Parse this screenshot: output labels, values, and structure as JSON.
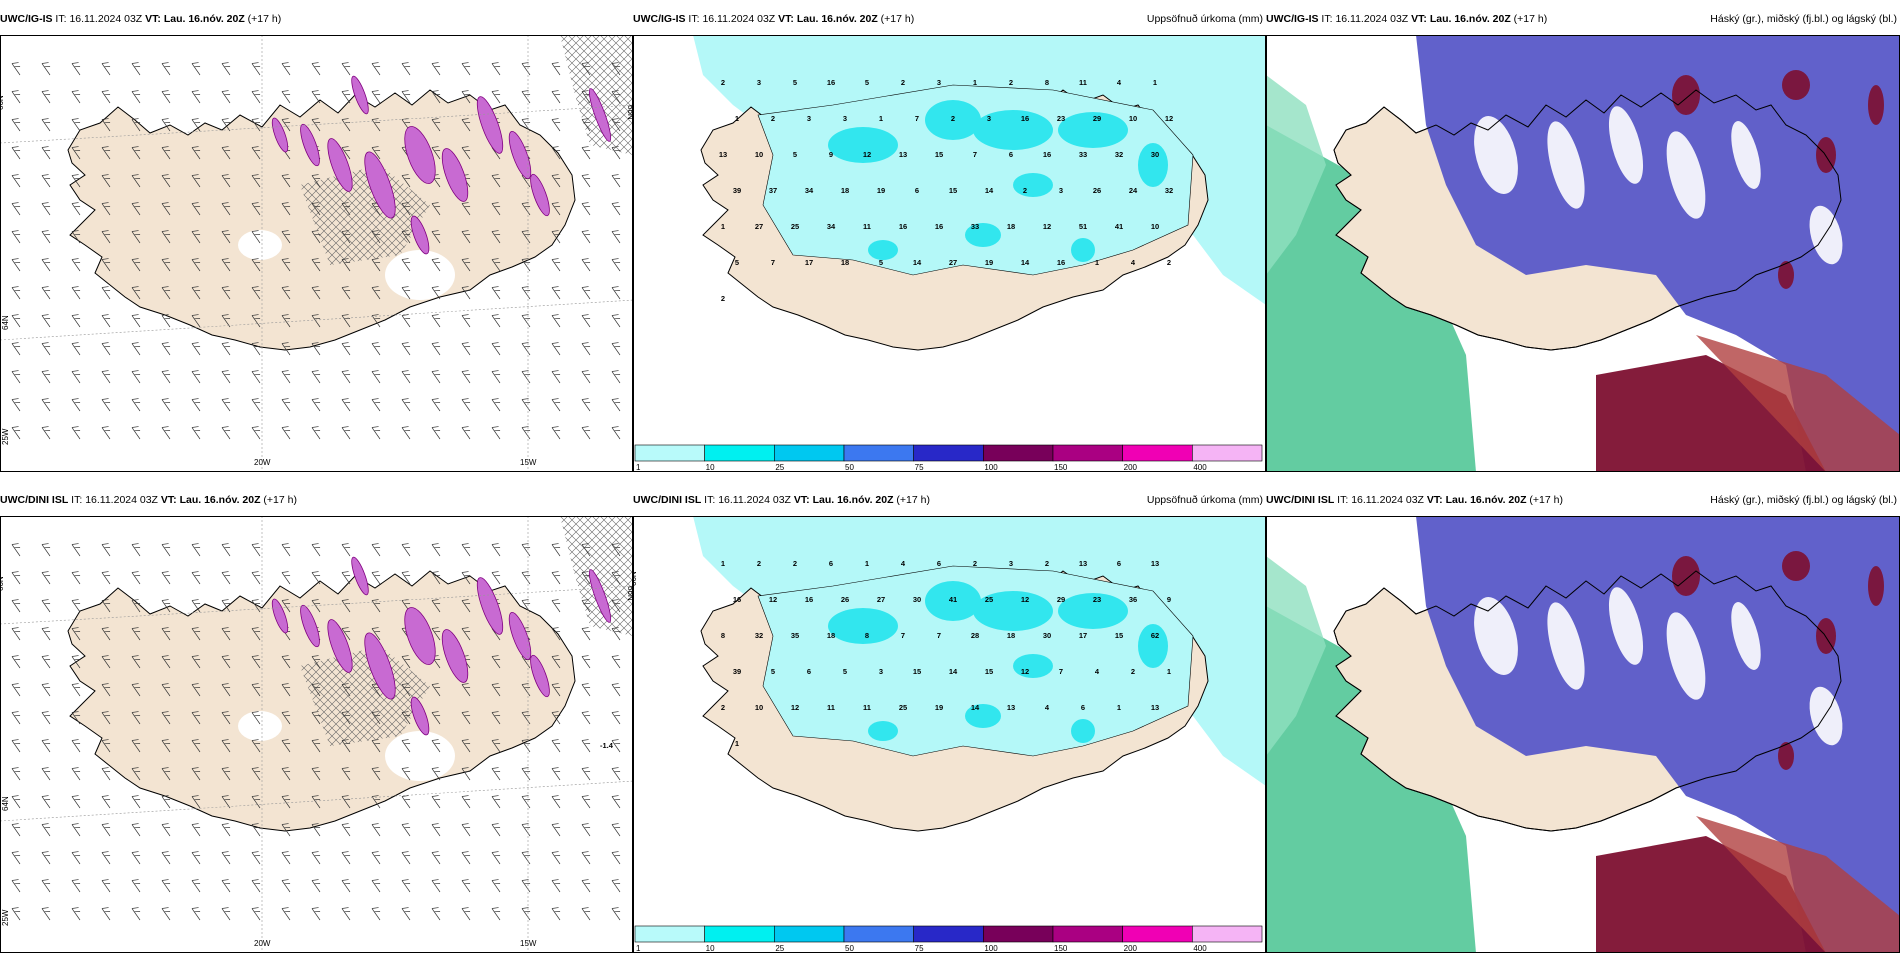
{
  "panels": [
    {
      "id": "p1",
      "model": "UWC/IG-IS",
      "it_label": "IT:",
      "it_value": "16.11.2024 03Z",
      "vt_label": "VT:",
      "vt_value": "Lau. 16.nóv. 20Z",
      "lead": "(+17 h)",
      "right_title": "",
      "lat_labels": [
        "66N",
        "64N",
        "25W"
      ],
      "lon_labels": [
        "20W",
        "15W"
      ],
      "edge_label": "66N"
    },
    {
      "id": "p2",
      "model": "UWC/IG-IS",
      "it_label": "IT:",
      "it_value": "16.11.2024 03Z",
      "vt_label": "VT:",
      "vt_value": "Lau. 16.nóv. 20Z",
      "lead": "(+17 h)",
      "right_title": "Uppsöfnuð úrkoma (mm)",
      "precip_values": [
        "2",
        "3",
        "5",
        "16",
        "5",
        "2",
        "3",
        "1",
        "2",
        "8",
        "11",
        "4",
        "1",
        "1",
        "2",
        "3",
        "3",
        "1",
        "7",
        "2",
        "3",
        "16",
        "23",
        "29",
        "10",
        "12",
        "13",
        "10",
        "5",
        "9",
        "12",
        "13",
        "15",
        "7",
        "6",
        "16",
        "33",
        "32",
        "30",
        "39",
        "37",
        "34",
        "18",
        "19",
        "6",
        "15",
        "14",
        "2",
        "3",
        "26",
        "24",
        "32",
        "1",
        "27",
        "25",
        "34",
        "11",
        "16",
        "16",
        "33",
        "18",
        "12",
        "51",
        "41",
        "10",
        "5",
        "7",
        "17",
        "18",
        "5",
        "14",
        "27",
        "19",
        "14",
        "16",
        "1",
        "4",
        "2",
        "2"
      ]
    },
    {
      "id": "p3",
      "model": "UWC/IG-IS",
      "it_label": "IT:",
      "it_value": "16.11.2024 03Z",
      "vt_label": "VT:",
      "vt_value": "Lau. 16.nóv. 20Z",
      "lead": "(+17 h)",
      "right_title": "Háský (gr.), miðský (fj.bl.) og lágský (bl.)"
    },
    {
      "id": "p4",
      "model": "UWC/DINI ISL",
      "it_label": "IT:",
      "it_value": "16.11.2024 03Z",
      "vt_label": "VT:",
      "vt_value": "Lau. 16.nóv. 20Z",
      "lead": "(+17 h)",
      "right_title": "",
      "lat_labels": [
        "66N",
        "64N",
        "25W"
      ],
      "lon_labels": [
        "20W",
        "15W"
      ],
      "edge_label": "66N",
      "extra_value": "-1.4"
    },
    {
      "id": "p5",
      "model": "UWC/DINI ISL",
      "it_label": "IT:",
      "it_value": "16.11.2024 03Z",
      "vt_label": "VT:",
      "vt_value": "Lau. 16.nóv. 20Z",
      "lead": "(+17 h)",
      "right_title": "Uppsöfnuð úrkoma (mm)",
      "edge_label": "66N",
      "precip_values": [
        "1",
        "2",
        "2",
        "6",
        "1",
        "4",
        "6",
        "2",
        "3",
        "2",
        "13",
        "6",
        "13",
        "16",
        "12",
        "16",
        "26",
        "27",
        "30",
        "41",
        "25",
        "12",
        "29",
        "23",
        "36",
        "9",
        "8",
        "32",
        "35",
        "18",
        "8",
        "7",
        "7",
        "28",
        "18",
        "30",
        "17",
        "15",
        "62",
        "39",
        "5",
        "6",
        "5",
        "3",
        "15",
        "14",
        "15",
        "12",
        "7",
        "4",
        "2",
        "1",
        "2",
        "10",
        "12",
        "11",
        "11",
        "25",
        "19",
        "14",
        "13",
        "4",
        "6",
        "1",
        "13",
        "1"
      ]
    },
    {
      "id": "p6",
      "model": "UWC/DINI ISL",
      "it_label": "IT:",
      "it_value": "16.11.2024 03Z",
      "vt_label": "VT:",
      "vt_value": "Lau. 16.nóv. 20Z",
      "lead": "(+17 h)",
      "right_title": "Háský (gr.), miðský (fj.bl.) og lágský (bl.)"
    }
  ],
  "colorbar": {
    "labels": [
      "1",
      "10",
      "25",
      "50",
      "75",
      "100",
      "150",
      "200",
      "400"
    ],
    "colors": [
      "#b8fafa",
      "#00f0f0",
      "#00c8f0",
      "#3c78f0",
      "#2828c8",
      "#78005a",
      "#aa0082",
      "#f000b4",
      "#f5b4f5"
    ]
  },
  "colors": {
    "land": "#f3e4d2",
    "precip_light": "#b4f8f8",
    "precip_mid": "#32e6ee",
    "high_cloud": "#3cbf8a",
    "mid_cloud": "#5858c8",
    "low_cloud": "#7d1030",
    "ice_snow": "#c86ad2"
  }
}
